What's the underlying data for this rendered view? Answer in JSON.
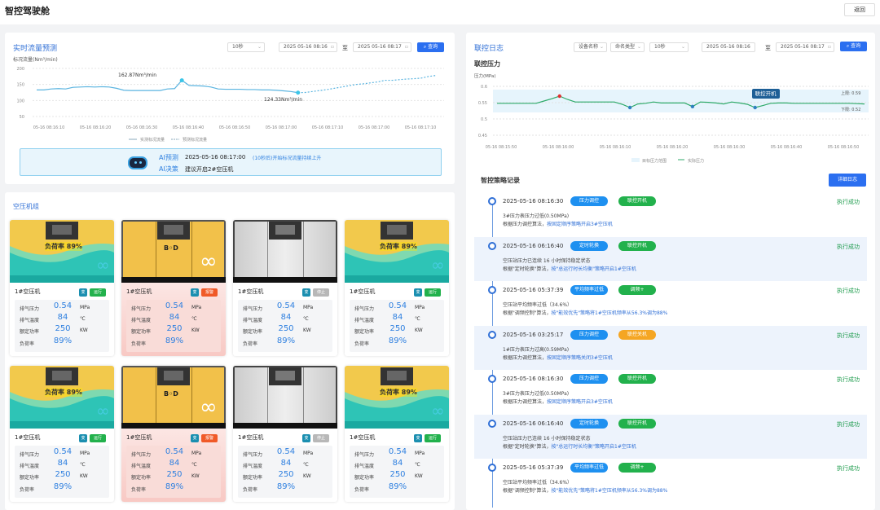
{
  "header": {
    "title": "智控驾驶舱",
    "back": "返回"
  },
  "flow": {
    "title": "实时流量预测",
    "interval": "10秒",
    "start": "2025 05-16 08:16",
    "to": "至",
    "end": "2025 05-16 08:17",
    "query": "查询",
    "ylabel": "标况流量(Nm³/min)",
    "peak_label": "162.87Nm³/min",
    "last_label": "124.33Nm³/min",
    "ai": {
      "predict_label": "AI预测",
      "predict_time": "2025-05-16 08:17:00",
      "predict_text": "(10秒后)开始标况流量持续上升",
      "decision_label": "AI决策",
      "decision_text": "建议开启2#空压机"
    }
  },
  "group": {
    "title": "空压机组"
  },
  "compressors": [
    {
      "name": "1#空压机",
      "type": "变",
      "status": "运行",
      "status_color": "#22b14c",
      "style": "teal",
      "load_text": "负荷率 89%",
      "pressure": "0.54",
      "temp": "84",
      "power": "250",
      "load": "89%"
    },
    {
      "name": "1#空压机",
      "type": "变",
      "status": "报警",
      "status_color": "#f05a28",
      "style": "yellow",
      "logo": "BOD",
      "pressure": "0.54",
      "temp": "84",
      "power": "250",
      "load": "89%"
    },
    {
      "name": "1#空压机",
      "type": "变",
      "status": "停止",
      "status_color": "#b8b8b8",
      "style": "gray",
      "pressure": "0.54",
      "temp": "84",
      "power": "250",
      "load": "89%"
    },
    {
      "name": "1#空压机",
      "type": "变",
      "status": "运行",
      "status_color": "#22b14c",
      "style": "teal",
      "load_text": "负荷率 89%",
      "pressure": "0.54",
      "temp": "84",
      "power": "250",
      "load": "89%"
    },
    {
      "name": "1#空压机",
      "type": "变",
      "status": "运行",
      "status_color": "#22b14c",
      "style": "teal",
      "load_text": "负荷率 89%",
      "pressure": "0.54",
      "temp": "84",
      "power": "250",
      "load": "89%"
    },
    {
      "name": "1#空压机",
      "type": "变",
      "status": "报警",
      "status_color": "#f05a28",
      "style": "yellow",
      "logo": "BOD",
      "pressure": "0.54",
      "temp": "84",
      "power": "250",
      "load": "89%"
    },
    {
      "name": "1#空压机",
      "type": "变",
      "status": "停止",
      "status_color": "#b8b8b8",
      "style": "gray",
      "pressure": "0.54",
      "temp": "84",
      "power": "250",
      "load": "89%"
    },
    {
      "name": "1#空压机",
      "type": "变",
      "status": "运行",
      "status_color": "#22b14c",
      "style": "teal",
      "load_text": "负荷率 89%",
      "pressure": "0.54",
      "temp": "84",
      "power": "250",
      "load": "89%"
    }
  ],
  "stat_labels": {
    "pressure": "排气压力",
    "temp": "排气温度",
    "power": "额定功率",
    "load": "负荷率",
    "pressure_unit": "MPa",
    "temp_unit": "℃",
    "power_unit": "KW"
  },
  "linkage": {
    "title": "联控日志",
    "device": "设备名称",
    "cmd": "命名类型",
    "interval": "10秒",
    "start": "2025 05-16 08:16",
    "to": "至",
    "end": "2025 05-16 08:17",
    "query": "查询",
    "chart_title": "联控压力",
    "ylabel": "压力(MPa)",
    "upper": "上限: 0.59",
    "lower": "下限: 0.52",
    "tooltip": "联控开机",
    "strategy_title": "智控策略记录",
    "detail_btn": "详细日志"
  },
  "logs": [
    {
      "time": "2025-05-16 08:16:30",
      "tag1": "压力调控",
      "tag2": "联控开机",
      "tag2_color": "#22b14c",
      "result": "执行成功",
      "line1": "3#压力表压力过低(0.50MPa)",
      "line2a": "根据压力调控算法，",
      "line2b": "按固定顺序策略开启3#空压机"
    },
    {
      "time": "2025-05-16 06:16:40",
      "tag1": "定时轮换",
      "tag2": "联控开机",
      "tag2_color": "#22b14c",
      "result": "执行成功",
      "line1": "空压站压力已连续 16 小时保持稳定状态",
      "line2a": "根据\"定时轮换\"算法，",
      "line2b": "按\"总运行时长均衡\"策略开启1#空压机"
    },
    {
      "time": "2025-05-16 05:37:39",
      "tag1": "平均频率过低",
      "tag2": "调频+",
      "tag2_color": "#22b14c",
      "result": "执行成功",
      "line1": "空压站平均频率过低（34.6%）",
      "line2a": "根据\"调频控制\"算法，",
      "line2b": "按\"能效优先\"策略将1#空压机频率从56.3%调为88%"
    },
    {
      "time": "2025-05-16 03:25:17",
      "tag1": "压力调控",
      "tag2": "联控关机",
      "tag2_color": "#f5a623",
      "result": "执行成功",
      "line1": "1#压力表压力过高(0.59MPa)",
      "line2a": "根据压力调控算法，",
      "line2b": "按固定顺序策略关闭3#空压机"
    },
    {
      "time": "2025-05-16 08:16:30",
      "tag1": "压力调控",
      "tag2": "联控开机",
      "tag2_color": "#22b14c",
      "result": "执行成功",
      "line1": "3#压力表压力过低(0.50MPa)",
      "line2a": "根据压力调控算法，",
      "line2b": "按固定顺序策略开启3#空压机"
    },
    {
      "time": "2025-05-16 06:16:40",
      "tag1": "定时轮换",
      "tag2": "联控开机",
      "tag2_color": "#22b14c",
      "result": "执行成功",
      "line1": "空压站压力已连续 16 小时保持稳定状态",
      "line2a": "根据\"定时轮换\"算法，",
      "line2b": "按\"总运行时长均衡\"策略开启1#空压机"
    },
    {
      "time": "2025-05-16 05:37:39",
      "tag1": "平均频率过低",
      "tag2": "调频+",
      "tag2_color": "#22b14c",
      "result": "执行成功",
      "line1": "空压站平均频率过低（34.6%）",
      "line2a": "根据\"调频控制\"算法，",
      "line2b": "按\"能效优先\"策略将1#空压机频率从56.3%调为88%"
    }
  ],
  "chart_data": [
    {
      "type": "line",
      "ylabel": "标况流量(Nm³/min)",
      "ylim": [
        50,
        200
      ],
      "yticks": [
        200,
        150,
        100,
        50
      ],
      "xticks": [
        "05-16 08:16:10",
        "05-16 08:16:20",
        "05-16 08:16:30",
        "05-16 08:16:40",
        "05-16 08:16:50",
        "05-16 08:17:00",
        "05-16 08:17:10",
        "05-16 08:17:00",
        "05-16 08:17:10"
      ],
      "series": [
        {
          "name": "实测标况流量",
          "style": "solid",
          "color": "#5ab4e0",
          "values": [
            133,
            133,
            136,
            137,
            136,
            141,
            142,
            143,
            142,
            143,
            142,
            138,
            132,
            131,
            131,
            131,
            131,
            131,
            136,
            137,
            162.87,
            147,
            146,
            145,
            142,
            136,
            135,
            135,
            135,
            134,
            134,
            133,
            133,
            132,
            130,
            128,
            124.33
          ]
        },
        {
          "name": "预测标况流量",
          "style": "dashed",
          "color": "#5ab4e0",
          "values": [
            124.33,
            125,
            128,
            131,
            134,
            138,
            142,
            146,
            150,
            152,
            155,
            158,
            163,
            163,
            165,
            167,
            168,
            170,
            175,
            178
          ]
        }
      ],
      "annotations": [
        "162.87Nm³/min",
        "124.33Nm³/min"
      ],
      "legend": "bottom",
      "grid": true
    },
    {
      "type": "line",
      "ylabel": "压力(MPa)",
      "ylim": [
        0.45,
        0.6
      ],
      "yticks": [
        0.6,
        0.55,
        0.5,
        0.45
      ],
      "xticks": [
        "05-16 08:15:50",
        "05-16 08:16:00",
        "05-16 08:16:10",
        "05-16 08:16:20",
        "05-16 08:16:30",
        "05-16 08:16:40",
        "05-16 08:16:50"
      ],
      "band": {
        "name": "目标压力范围",
        "lower": 0.52,
        "upper": 0.59,
        "color": "#e6f4fc"
      },
      "series": [
        {
          "name": "实际压力",
          "color": "#2eaa6a",
          "values": [
            0.548,
            0.548,
            0.548,
            0.548,
            0.548,
            0.548,
            0.555,
            0.562,
            0.57,
            0.56,
            0.552,
            0.552,
            0.552,
            0.552,
            0.552,
            0.552,
            0.545,
            0.535,
            0.546,
            0.548,
            0.552,
            0.549,
            0.549,
            0.549,
            0.549,
            0.538,
            0.552,
            0.551,
            0.549,
            0.546,
            0.552,
            0.549,
            0.545,
            0.535,
            0.541,
            0.548,
            0.549,
            0.549,
            0.548,
            0.548,
            0.548,
            0.548,
            0.548,
            0.548,
            0.548,
            0.548,
            0.547,
            0.546
          ]
        }
      ],
      "markers": [
        {
          "index": 8,
          "color": "#e03030"
        },
        {
          "index": 17,
          "color": "#2f80c0"
        },
        {
          "index": 25,
          "color": "#2f80c0"
        },
        {
          "index": 33,
          "color": "#2f80c0",
          "label": "联控开机"
        }
      ],
      "legend": "bottom",
      "grid": true
    }
  ]
}
